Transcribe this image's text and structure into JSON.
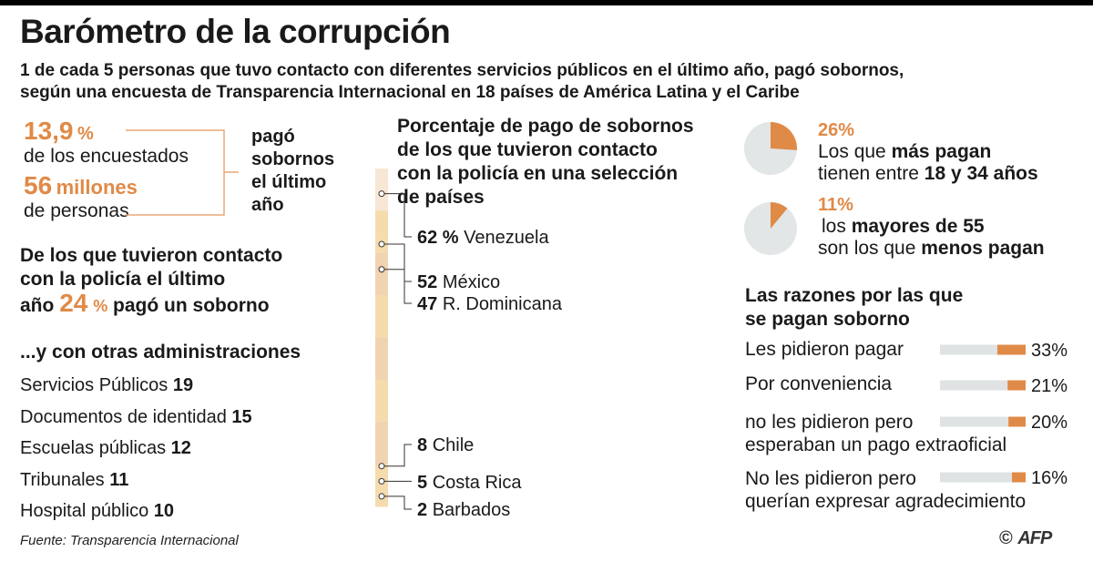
{
  "title": "Barómetro de la corrupción",
  "subtitle_line1": "1 de cada 5 personas que tuvo contacto con diferentes servicios públicos en el último año, pagó sobornos,",
  "subtitle_line2": "según una encuesta de Transparencia Internacional en 18 países de América Latina y el Caribe",
  "stats": {
    "pct_value": "13,9",
    "pct_unit": "%",
    "pct_label": "de los encuestados",
    "millions_value": "56",
    "millions_unit": "millones",
    "millions_label": "de personas",
    "bracket_label": [
      "pagó",
      "sobornos",
      "el último",
      "año"
    ]
  },
  "police": {
    "line1": "De los que tuvieron contacto",
    "line2": "con la policía el último",
    "line3_pre": "año",
    "line3_value": "24",
    "line3_unit": "%",
    "line3_post": "pagó un soborno"
  },
  "other_admin": {
    "heading": "...y con otras administraciones",
    "items": [
      {
        "label": "Servicios Públicos",
        "value": "19"
      },
      {
        "label": "Documentos de identidad",
        "value": "15"
      },
      {
        "label": "Escuelas públicas",
        "value": "12"
      },
      {
        "label": "Tribunales",
        "value": "11"
      },
      {
        "label": "Hospital público",
        "value": "10"
      }
    ]
  },
  "chart_data": [
    {
      "type": "bar",
      "title": "Porcentaje de pago de sobornos de los que tuvieron contacto con la policía en una selección de países",
      "title_lines": [
        "Porcentaje de pago de sobornos",
        "de los que tuvieron contacto",
        "con la policía en una selección",
        "de países"
      ],
      "unit": "%",
      "countries": [
        {
          "name": "Venezuela",
          "value": 62,
          "label": "62 %"
        },
        {
          "name": "México",
          "value": 52,
          "label": "52"
        },
        {
          "name": "R. Dominicana",
          "value": 47,
          "label": "47"
        },
        {
          "name": "Chile",
          "value": 8,
          "label": "8"
        },
        {
          "name": "Costa Rica",
          "value": 5,
          "label": "5"
        },
        {
          "name": "Barbados",
          "value": 2,
          "label": "2"
        }
      ],
      "ylim": [
        0,
        70
      ]
    },
    {
      "type": "pie",
      "slices": [
        {
          "value": 26,
          "label": "26%",
          "line1_pre": "Los que ",
          "line1_bold": "más pagan",
          "line2_pre": "tienen entre ",
          "line2_bold": "18 y 34 años"
        },
        {
          "value": 11,
          "label": "11%",
          "line1_pre": "los ",
          "line1_bold": "mayores de 55",
          "line2_pre": "son los que ",
          "line2_bold": "menos pagan"
        }
      ],
      "colors": {
        "slice": "#e08a47",
        "rest": "#e3e6e7"
      }
    },
    {
      "type": "bar",
      "title": "Las razones por las que se pagan soborno",
      "title_lines": [
        "Las razones por las que",
        "se pagan soborno"
      ],
      "categories": [
        [
          "Les pidieron pagar"
        ],
        [
          "Por conveniencia"
        ],
        [
          "no les pidieron pero",
          "esperaban un pago extraoficial"
        ],
        [
          "No les pidieron pero",
          "querían expresar agradecimiento"
        ]
      ],
      "values": [
        33,
        21,
        20,
        16
      ],
      "labels": [
        "33%",
        "21%",
        "20%",
        "16%"
      ],
      "xlim": [
        0,
        100
      ],
      "colors": {
        "bar": "#e08a47",
        "track": "#dfe3e4"
      }
    }
  ],
  "footer": {
    "source": "Fuente: Transparencia Internacional",
    "copyright": "©",
    "agency": "AFP"
  },
  "colors": {
    "accent": "#e08a47",
    "light_accent": "#f5d9a8",
    "gray": "#e3e6e7"
  }
}
